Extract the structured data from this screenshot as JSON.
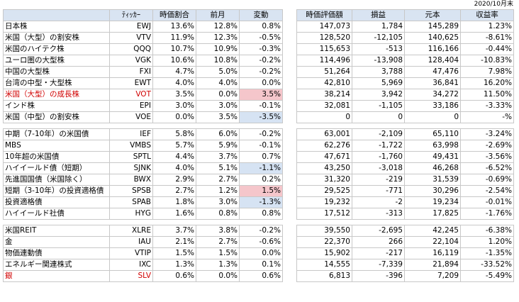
{
  "date": "2020/10月末",
  "headers": {
    "left": [
      "",
      "ﾃｨｯｶｰ",
      "時価割合",
      "前月",
      "変動"
    ],
    "right": [
      "時価評価額",
      "損益",
      "元本",
      "収益率"
    ]
  },
  "colors": {
    "red_text": "#d00000",
    "pink_highlight": "#f5c6cb",
    "blue_highlight": "#d6e3f3",
    "header_bg": "#d9e4f2"
  },
  "groups": [
    [
      {
        "name": "日本株",
        "ticker": "EWJ",
        "ratio": "13.6%",
        "prev": "12.8%",
        "change": "0.8%",
        "value": "147,073",
        "pl": "1,784",
        "principal": "145,289",
        "yield": "1.23%"
      },
      {
        "name": "米国（大型）の割安株",
        "ticker": "VTV",
        "ratio": "11.9%",
        "prev": "12.3%",
        "change": "-0.5%",
        "value": "128,520",
        "pl": "-12,105",
        "principal": "140,625",
        "yield": "-8.61%"
      },
      {
        "name": "米国のハイテク株",
        "ticker": "QQQ",
        "ratio": "10.7%",
        "prev": "10.9%",
        "change": "-0.3%",
        "value": "115,653",
        "pl": "-513",
        "principal": "116,166",
        "yield": "-0.44%"
      },
      {
        "name": "ユーロ圏の大型株",
        "ticker": "VGK",
        "ratio": "10.6%",
        "prev": "10.8%",
        "change": "-0.2%",
        "value": "114,496",
        "pl": "-13,908",
        "principal": "128,404",
        "yield": "-10.83%"
      },
      {
        "name": "中国の大型株",
        "ticker": "FXI",
        "ratio": "4.7%",
        "prev": "5.0%",
        "change": "-0.2%",
        "value": "51,264",
        "pl": "3,788",
        "principal": "47,476",
        "yield": "7.98%"
      },
      {
        "name": "台湾の中型・大型株",
        "ticker": "EWT",
        "ratio": "4.0%",
        "prev": "4.0%",
        "change": "0.0%",
        "value": "42,810",
        "pl": "5,969",
        "principal": "36,841",
        "yield": "16.20%"
      },
      {
        "name": "米国（大型）の成長株",
        "ticker": "VOT",
        "ratio": "3.5%",
        "prev": "0.0%",
        "change": "3.5%",
        "value": "38,214",
        "pl": "3,942",
        "principal": "34,272",
        "yield": "11.50%",
        "red": true,
        "hl": "pink"
      },
      {
        "name": "インド株",
        "ticker": "EPI",
        "ratio": "3.0%",
        "prev": "3.0%",
        "change": "-0.1%",
        "value": "32,081",
        "pl": "-1,105",
        "principal": "33,186",
        "yield": "-3.33%"
      },
      {
        "name": "米国（中型）の割安株",
        "ticker": "VOE",
        "ratio": "0.0%",
        "prev": "3.5%",
        "change": "-3.5%",
        "value": "0",
        "pl": "0",
        "principal": "0",
        "yield": "-%",
        "hl": "blue"
      }
    ],
    [
      {
        "name": "中期（7-10年）の米国債",
        "ticker": "IEF",
        "ratio": "5.8%",
        "prev": "6.0%",
        "change": "-0.2%",
        "value": "63,001",
        "pl": "-2,109",
        "principal": "65,110",
        "yield": "-3.24%"
      },
      {
        "name": "MBS",
        "ticker": "VMBS",
        "ratio": "5.7%",
        "prev": "5.9%",
        "change": "-0.1%",
        "value": "62,276",
        "pl": "-1,722",
        "principal": "63,998",
        "yield": "-2.69%"
      },
      {
        "name": "10年超の米国債",
        "ticker": "SPTL",
        "ratio": "4.4%",
        "prev": "3.7%",
        "change": "0.7%",
        "value": "47,671",
        "pl": "-1,760",
        "principal": "49,431",
        "yield": "-3.56%"
      },
      {
        "name": "ハイイールド債（短期）",
        "ticker": "SJNK",
        "ratio": "4.0%",
        "prev": "5.1%",
        "change": "-1.1%",
        "value": "43,250",
        "pl": "-3,018",
        "principal": "46,268",
        "yield": "-6.52%",
        "hl": "blue"
      },
      {
        "name": "先進国国債（米国除く）",
        "ticker": "BWX",
        "ratio": "2.9%",
        "prev": "2.7%",
        "change": "0.2%",
        "value": "31,320",
        "pl": "-219",
        "principal": "31,539",
        "yield": "-0.69%"
      },
      {
        "name": "短期（3-10年）の投資適格債",
        "ticker": "SPSB",
        "ratio": "2.7%",
        "prev": "1.2%",
        "change": "1.5%",
        "value": "29,525",
        "pl": "-771",
        "principal": "30,296",
        "yield": "-2.54%",
        "hl": "pink"
      },
      {
        "name": "投資適格債",
        "ticker": "SPAB",
        "ratio": "1.8%",
        "prev": "3.0%",
        "change": "-1.3%",
        "value": "19,232",
        "pl": "-2",
        "principal": "19,234",
        "yield": "-0.01%",
        "hl": "blue"
      },
      {
        "name": "ハイイールド社債",
        "ticker": "HYG",
        "ratio": "1.6%",
        "prev": "0.8%",
        "change": "0.8%",
        "value": "17,512",
        "pl": "-313",
        "principal": "17,825",
        "yield": "-1.76%"
      }
    ],
    [
      {
        "name": "米国REIT",
        "ticker": "XLRE",
        "ratio": "3.7%",
        "prev": "3.8%",
        "change": "-0.2%",
        "value": "39,550",
        "pl": "-2,695",
        "principal": "42,245",
        "yield": "-6.38%"
      },
      {
        "name": "金",
        "ticker": "IAU",
        "ratio": "2.1%",
        "prev": "2.7%",
        "change": "-0.6%",
        "value": "22,370",
        "pl": "266",
        "principal": "22,104",
        "yield": "1.20%"
      },
      {
        "name": "物価連動債",
        "ticker": "VTIP",
        "ratio": "1.5%",
        "prev": "1.5%",
        "change": "0.0%",
        "value": "15,902",
        "pl": "-217",
        "principal": "16,119",
        "yield": "-1.35%"
      },
      {
        "name": "エネルギー関連株式",
        "ticker": "IXC",
        "ratio": "1.3%",
        "prev": "1.3%",
        "change": "0.1%",
        "value": "14,555",
        "pl": "-7,339",
        "principal": "21,894",
        "yield": "-33.52%"
      },
      {
        "name": "銀",
        "ticker": "SLV",
        "ratio": "0.6%",
        "prev": "0.0%",
        "change": "0.6%",
        "value": "6,813",
        "pl": "-396",
        "principal": "7,209",
        "yield": "-5.49%",
        "red": true
      }
    ]
  ]
}
